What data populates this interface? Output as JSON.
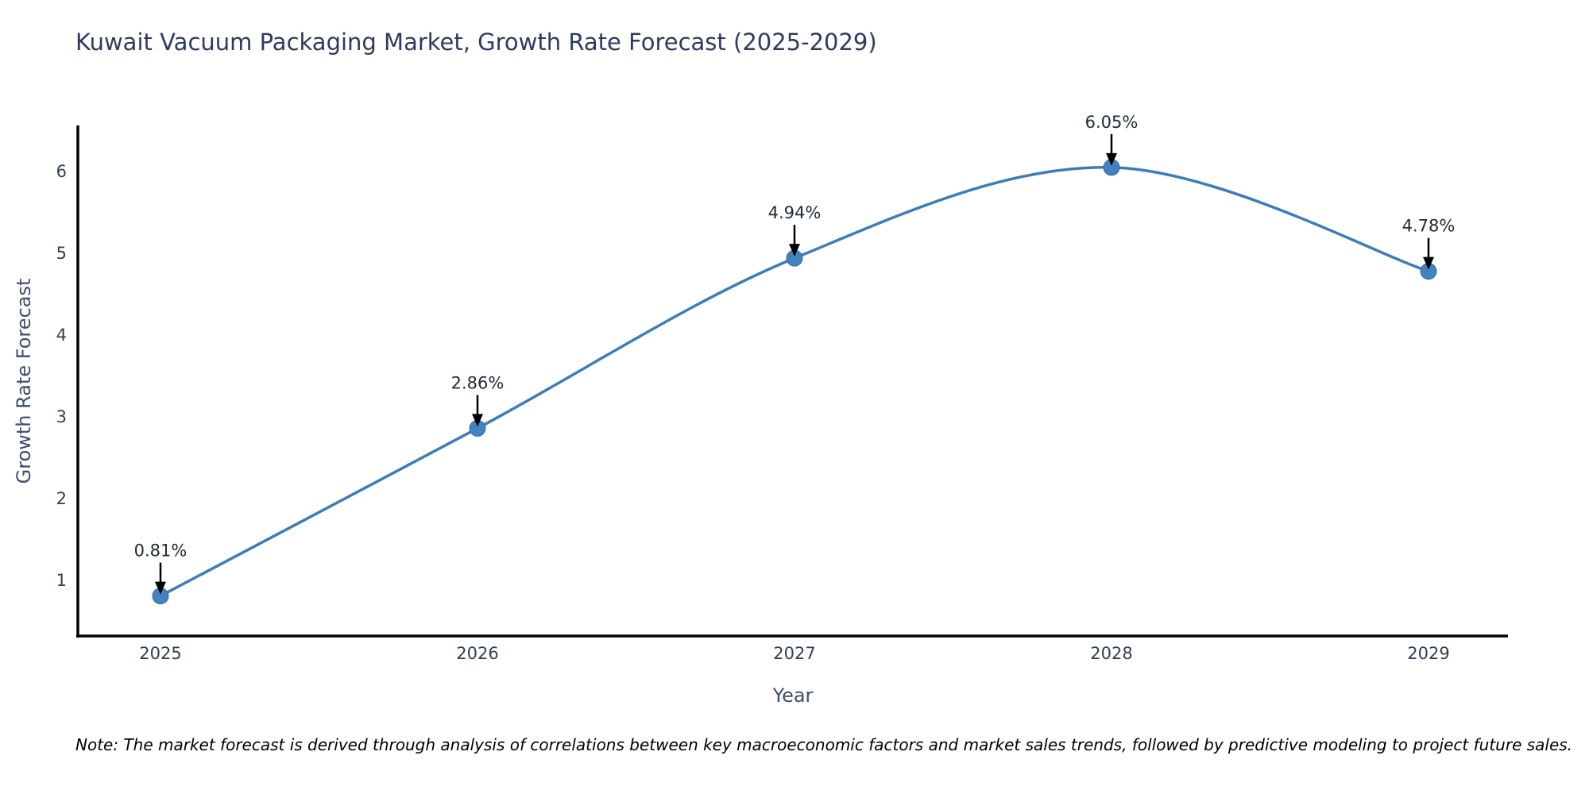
{
  "figure": {
    "note": "Note: The market forecast is derived through analysis of correlations between key macroeconomic factors and market sales trends, followed by predictive modeling to project future sales."
  },
  "chart_data": {
    "type": "line",
    "title": "Kuwait Vacuum Packaging Market, Growth Rate Forecast (2025-2029)",
    "xlabel": "Year",
    "ylabel": "Growth Rate Forecast",
    "categories": [
      "2025",
      "2026",
      "2027",
      "2028",
      "2029"
    ],
    "values": [
      0.81,
      2.86,
      4.94,
      6.05,
      4.78
    ],
    "point_labels": [
      "0.81%",
      "2.86%",
      "4.94%",
      "6.05%",
      "4.78%"
    ],
    "yticks": [
      1,
      2,
      3,
      4,
      5,
      6
    ],
    "ylim": [
      0.32,
      6.56
    ],
    "grid": false,
    "legend": false,
    "curve": "spline",
    "annotations_style": "label-with-down-arrow",
    "colors": {
      "line": "#3d7cba",
      "marker_fill": "#4383bd",
      "marker_edge": "#2f6ba3",
      "annotation_text": "#222a38",
      "arrow": "#000000",
      "axis": "#000000",
      "tick_label": "#333e55",
      "axis_title": "#3c4d6e",
      "title": "#2d3c5e",
      "note": "#000000",
      "background": "#ffffff"
    }
  }
}
